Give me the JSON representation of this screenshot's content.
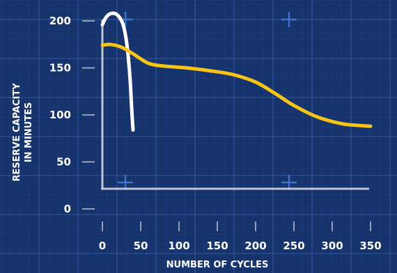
{
  "chart_data": {
    "type": "line",
    "xlabel": "NUMBER OF CYCLES",
    "ylabel_line1": "RESERVE CAPACITY",
    "ylabel_line2": "IN MINUTES",
    "xlim": [
      0,
      350
    ],
    "ylim": [
      0,
      200
    ],
    "x_ticks": [
      0,
      50,
      100,
      150,
      200,
      250,
      300,
      350
    ],
    "y_ticks": [
      0,
      50,
      100,
      150,
      200
    ],
    "grid": true,
    "series": [
      {
        "color": "#ffffff",
        "points": [
          [
            0,
            196
          ],
          [
            5,
            204
          ],
          [
            12,
            208
          ],
          [
            20,
            206
          ],
          [
            27,
            196
          ],
          [
            32,
            175
          ],
          [
            36,
            140
          ],
          [
            38,
            110
          ],
          [
            40,
            84
          ]
        ]
      },
      {
        "color": "#f7c417",
        "points": [
          [
            0,
            174
          ],
          [
            10,
            175
          ],
          [
            25,
            172
          ],
          [
            40,
            165
          ],
          [
            60,
            155
          ],
          [
            80,
            152
          ],
          [
            110,
            150
          ],
          [
            140,
            147
          ],
          [
            170,
            143
          ],
          [
            200,
            135
          ],
          [
            225,
            123
          ],
          [
            250,
            110
          ],
          [
            280,
            98
          ],
          [
            310,
            91
          ],
          [
            330,
            89
          ],
          [
            350,
            88
          ]
        ]
      }
    ],
    "colors": {
      "background": "#16336b",
      "grid": "#2f5aa3",
      "axis": "#bfc5d2"
    }
  }
}
